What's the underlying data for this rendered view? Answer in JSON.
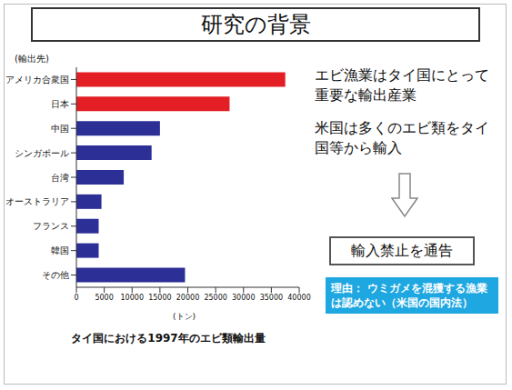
{
  "chart_data": {
    "type": "bar",
    "orientation": "horizontal",
    "title": "研究の背景",
    "subtitle": "タイ国における1997年のエビ類輸出量",
    "y_label": "(輸出先)",
    "x_label": "(トン)",
    "categories": [
      "アメリカ合衆国",
      "日本",
      "中国",
      "シンガポール",
      "台湾",
      "オーストラリア",
      "フランス",
      "韓国",
      "その他"
    ],
    "values": [
      37500,
      27500,
      15000,
      13500,
      8500,
      4500,
      4000,
      4000,
      19500
    ],
    "colors": [
      "#e31e24",
      "#e31e24",
      "#2b2f96",
      "#2b2f96",
      "#2b2f96",
      "#2b2f96",
      "#2b2f96",
      "#2b2f96",
      "#2b2f96"
    ],
    "xlim": [
      0,
      40000
    ],
    "xticks": [
      0,
      5000,
      10000,
      15000,
      20000,
      25000,
      30000,
      35000,
      40000
    ],
    "grid": false,
    "annotations": [
      "エビ漁業はタイ国にとって重要な輸出産業",
      "米国は多くのエビ類をタイ国等から輸入",
      "輸入禁止を通告",
      "理由： ウミガメを混獲する漁業は認めない（米国の国内法）"
    ]
  }
}
